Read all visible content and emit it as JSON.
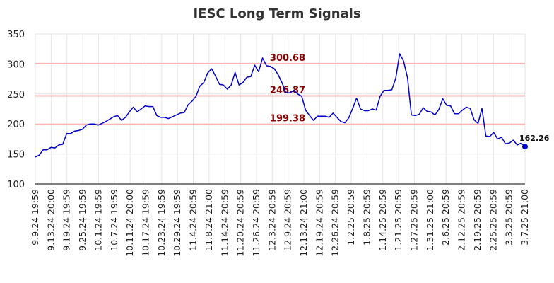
{
  "chart_data": {
    "type": "line",
    "title": "IESC Long Term Signals",
    "xlabel": "",
    "ylabel": "",
    "ylim": [
      100,
      350
    ],
    "y_ticks": [
      100,
      150,
      200,
      250,
      300,
      350
    ],
    "grid": true,
    "x_tick_labels": [
      "9.9.24 19:59",
      "9.13.24 20:00",
      "9.19.24 19:59",
      "9.25.24 19:59",
      "10.1.24 19:59",
      "10.7.24 19:59",
      "10.11.24 20:00",
      "10.17.24 19:59",
      "10.23.24 19:59",
      "10.29.24 19:59",
      "11.4.24 20:59",
      "11.8.24 21:00",
      "11.14.24 20:59",
      "11.20.24 20:59",
      "11.26.24 20:59",
      "12.3.24 20:59",
      "12.9.24 20:59",
      "12.13.24 21:00",
      "12.19.24 20:59",
      "12.26.24 20:59",
      "1.2.25 20:59",
      "1.8.25 20:59",
      "1.14.25 20:59",
      "1.21.25 20:59",
      "1.27.25 20:59",
      "1.31.25 21:00",
      "2.6.25 20:59",
      "2.12.25 20:59",
      "2.19.25 20:59",
      "2.25.25 20:59",
      "3.3.25 20:59",
      "3.7.25 21:00"
    ],
    "levels": [
      {
        "value": 300.68,
        "label": "300.68"
      },
      {
        "value": 246.87,
        "label": "246.87"
      },
      {
        "value": 199.38,
        "label": "199.38"
      }
    ],
    "series": [
      {
        "color": "#0000cc",
        "values": [
          145,
          148,
          157,
          157,
          161,
          160,
          165,
          166,
          184,
          184,
          188,
          189,
          191,
          198,
          200,
          200,
          198,
          201,
          204,
          208,
          212,
          214,
          206,
          211,
          220,
          228,
          220,
          225,
          230,
          229,
          229,
          214,
          211,
          211,
          209,
          212,
          215,
          218,
          219,
          232,
          238,
          246,
          263,
          269,
          285,
          292,
          280,
          266,
          265,
          258,
          265,
          286,
          265,
          269,
          278,
          279,
          298,
          287,
          310,
          297,
          296,
          292,
          282,
          268,
          252,
          252,
          256,
          250,
          246,
          223,
          214,
          206,
          213,
          213,
          213,
          211,
          218,
          211,
          204,
          202,
          210,
          226,
          243,
          225,
          222,
          222,
          225,
          223,
          246,
          256,
          256,
          257,
          276,
          317,
          305,
          277,
          215,
          214,
          216,
          227,
          221,
          220,
          215,
          224,
          242,
          231,
          230,
          217,
          217,
          223,
          228,
          226,
          207,
          201,
          226,
          180,
          179,
          186,
          175,
          178,
          167,
          168,
          173,
          165,
          168,
          162.26
        ]
      }
    ],
    "last_value_label": "162.26",
    "colors": {
      "line": "#0000cc",
      "level_line": "#ffb3b3",
      "level_text": "#8b0000",
      "grid": "#e6e6e6"
    }
  }
}
